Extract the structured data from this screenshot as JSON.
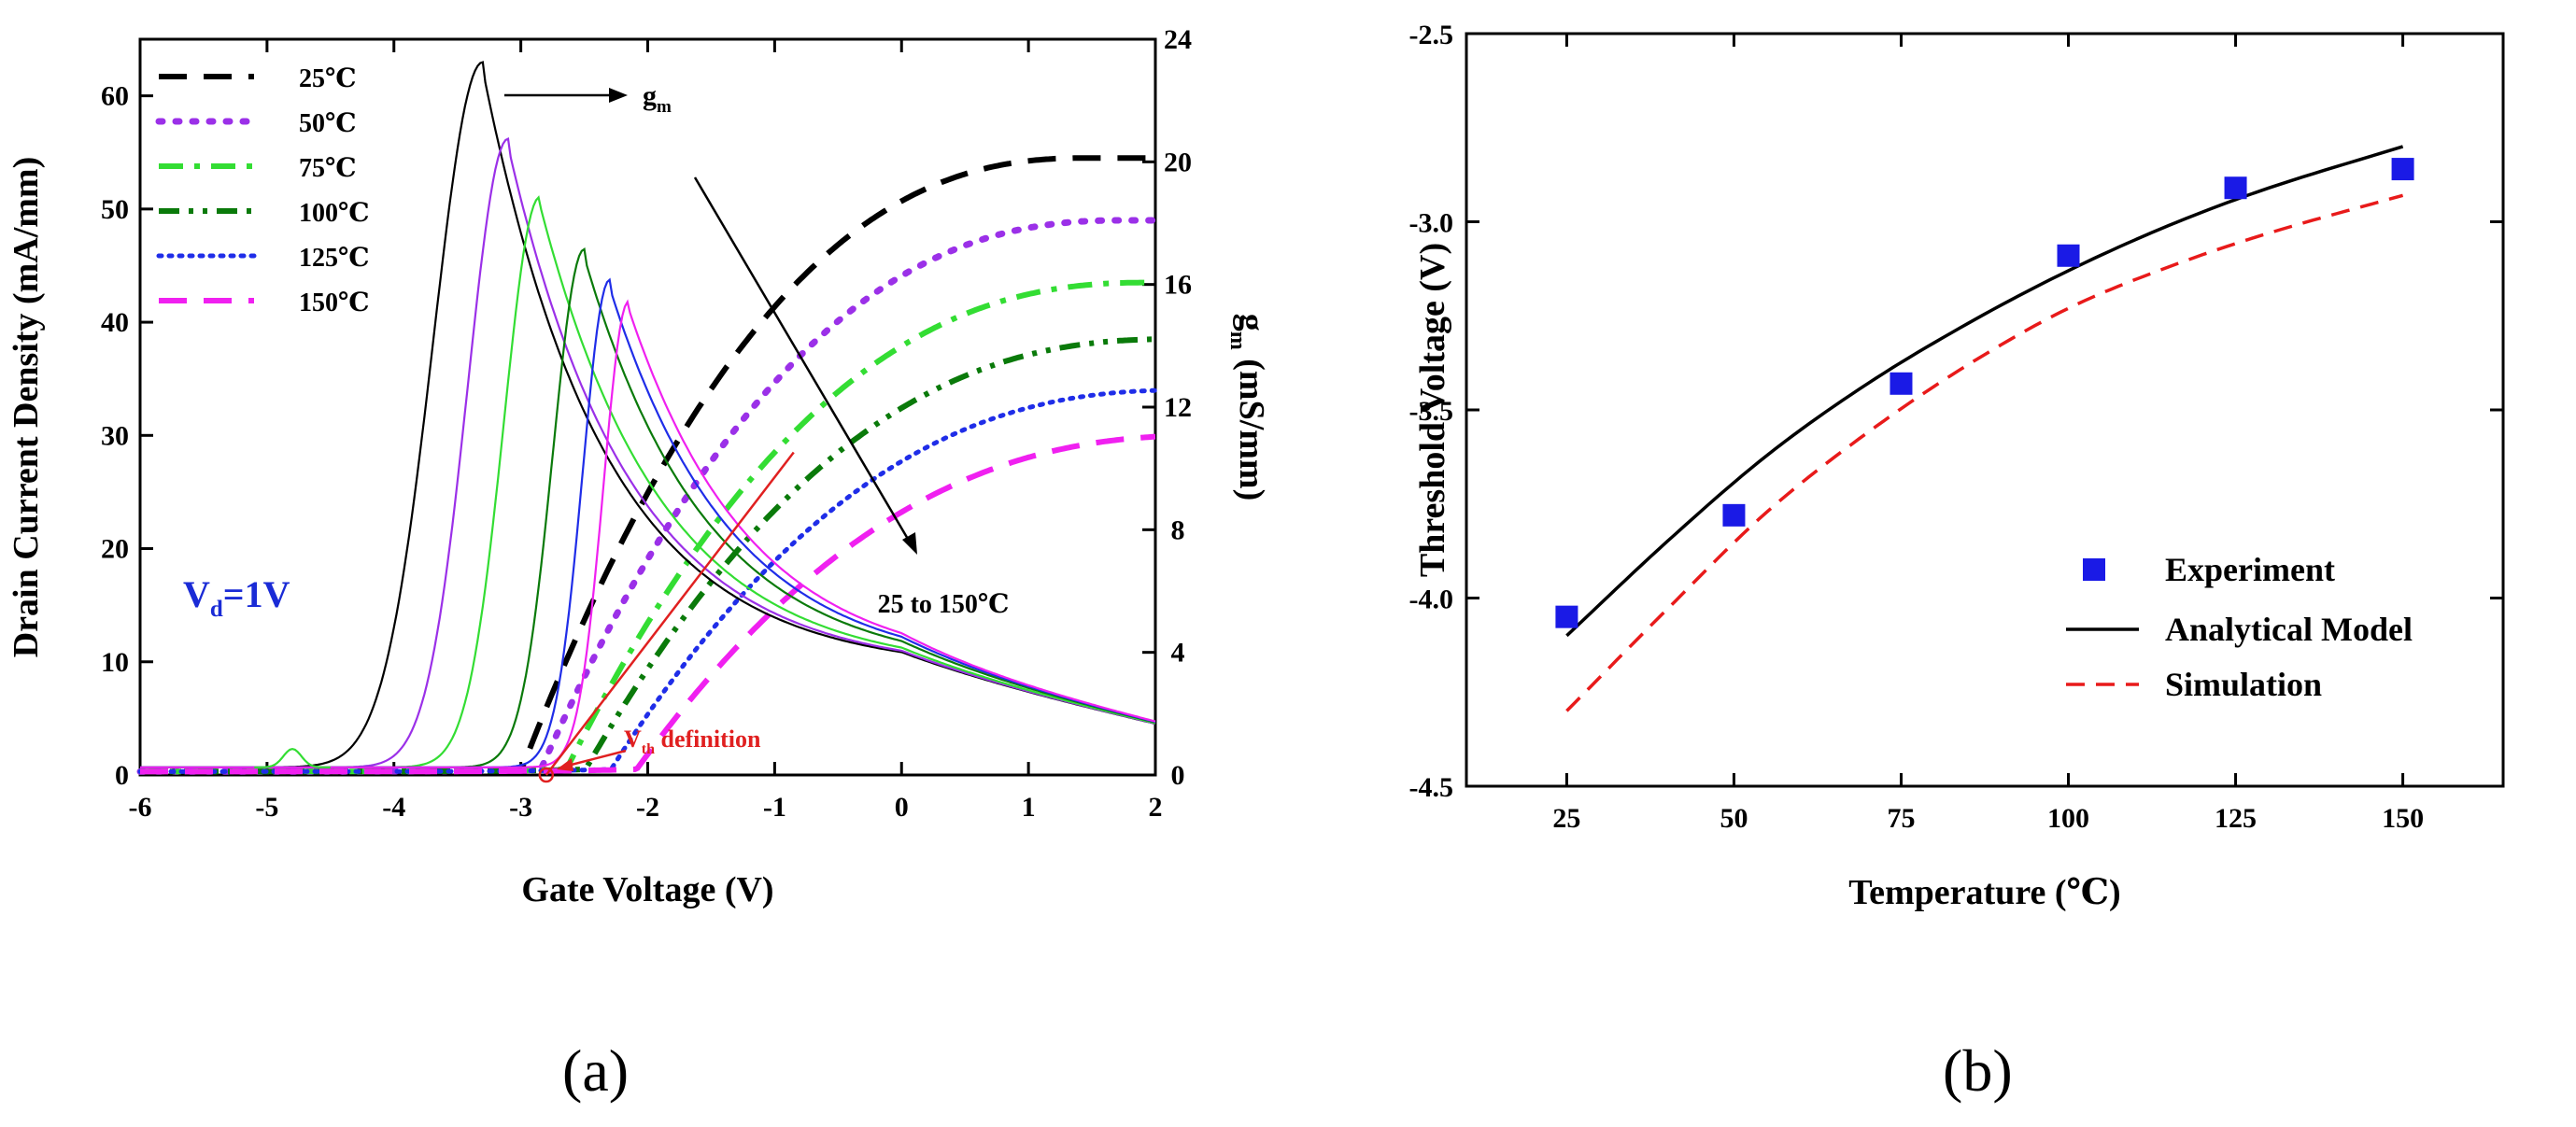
{
  "chart_data": [
    {
      "id": "a",
      "type": "line",
      "panel_label": "(a)",
      "title": "",
      "xlabel": "Gate Voltage (V)",
      "ylabel": "Drain Current Density (mA/mm)",
      "y2label": "g",
      "y2label_sub": "m",
      "y2label_unit": " (mS/mm)",
      "xlim": [
        -6,
        2
      ],
      "ylim": [
        0,
        65
      ],
      "y2lim": [
        0,
        24
      ],
      "xticks": [
        -6,
        -5,
        -4,
        -3,
        -2,
        -1,
        0,
        1,
        2
      ],
      "yticks": [
        0,
        10,
        20,
        30,
        40,
        50,
        60
      ],
      "y2ticks": [
        0,
        4,
        8,
        12,
        16,
        20,
        24
      ],
      "legend": [
        "25℃",
        "50℃",
        "75℃",
        "100℃",
        "125℃",
        "150℃"
      ],
      "legend_position": "top-left",
      "colors": [
        "#000000",
        "#9b30e8",
        "#33dd33",
        "#0a7a0a",
        "#1f2de8",
        "#f020f0"
      ],
      "annotations": {
        "vd_main": "V",
        "vd_sub": "d",
        "vd_rest": "=1V",
        "gm_main": "g",
        "gm_sub": "m",
        "temp_range": "25 to 150℃",
        "vth_main": "V",
        "vth_sub": "th",
        "vth_rest": " definition"
      },
      "series_id": [
        {
          "name": "25℃",
          "kind": "drain_current",
          "vth": -3.0,
          "vsat": 1.5,
          "i_sat": 54.5,
          "style": "dash"
        },
        {
          "name": "50℃",
          "kind": "drain_current",
          "vth": -2.85,
          "vsat": 1.8,
          "i_sat": 49.0,
          "style": "dot"
        },
        {
          "name": "75℃",
          "kind": "drain_current",
          "vth": -2.65,
          "vsat": 2.0,
          "i_sat": 43.5,
          "style": "dashdot"
        },
        {
          "name": "100℃",
          "kind": "drain_current",
          "vth": -2.5,
          "vsat": 2.2,
          "i_sat": 38.5,
          "style": "dashdotdot"
        },
        {
          "name": "125℃",
          "kind": "drain_current",
          "vth": -2.3,
          "vsat": 2.3,
          "i_sat": 34.0,
          "style": "shortdot"
        },
        {
          "name": "150℃",
          "kind": "drain_current",
          "vth": -2.1,
          "vsat": 2.5,
          "i_sat": 30.0,
          "style": "dash"
        }
      ],
      "series_gm": [
        {
          "name": "25℃",
          "kind": "gm",
          "v_peak": -3.3,
          "gm_peak": 23.0,
          "left_width": 0.55
        },
        {
          "name": "50℃",
          "kind": "gm",
          "v_peak": -3.1,
          "gm_peak": 20.5,
          "left_width": 0.45
        },
        {
          "name": "75℃",
          "kind": "gm",
          "v_peak": -2.85,
          "gm_peak": 18.6,
          "left_width": 0.4
        },
        {
          "name": "100℃",
          "kind": "gm",
          "v_peak": -2.5,
          "gm_peak": 16.9,
          "left_width": 0.35
        },
        {
          "name": "125℃",
          "kind": "gm",
          "v_peak": -2.3,
          "gm_peak": 15.9,
          "left_width": 0.3
        },
        {
          "name": "150℃",
          "kind": "gm",
          "v_peak": -2.15,
          "gm_peak": 15.2,
          "left_width": 0.28
        }
      ]
    },
    {
      "id": "b",
      "type": "scatter",
      "panel_label": "(b)",
      "title": "",
      "xlabel": "Temperature (℃)",
      "ylabel": "Threshold Voltage (V)",
      "xlim": [
        10,
        165
      ],
      "ylim": [
        -4.5,
        -2.5
      ],
      "xticks": [
        25,
        50,
        75,
        100,
        125,
        150
      ],
      "yticks": [
        -4.5,
        -4.0,
        -3.5,
        -3.0,
        -2.5
      ],
      "ytick_labels": [
        "-4.5",
        "-4.0",
        "-3.5",
        "-3.0",
        "-2.5"
      ],
      "legend_position": "bottom-right",
      "series": [
        {
          "name": "Experiment",
          "type": "scatter",
          "color": "#1a1ae6",
          "x": [
            25,
            50,
            75,
            100,
            125,
            150
          ],
          "y": [
            -4.05,
            -3.78,
            -3.43,
            -3.09,
            -2.91,
            -2.86
          ]
        },
        {
          "name": "Analytical Model",
          "type": "line",
          "color": "#000000",
          "x": [
            25,
            40,
            55,
            70,
            85,
            100,
            115,
            130,
            150
          ],
          "y": [
            -4.1,
            -3.85,
            -3.62,
            -3.43,
            -3.27,
            -3.13,
            -3.01,
            -2.91,
            -2.8
          ]
        },
        {
          "name": "Simulation",
          "type": "line",
          "style": "dashed",
          "color": "#e81a1a",
          "x": [
            25,
            40,
            55,
            70,
            85,
            100,
            115,
            130,
            150
          ],
          "y": [
            -4.3,
            -4.03,
            -3.77,
            -3.56,
            -3.38,
            -3.23,
            -3.12,
            -3.03,
            -2.93
          ]
        }
      ]
    }
  ]
}
